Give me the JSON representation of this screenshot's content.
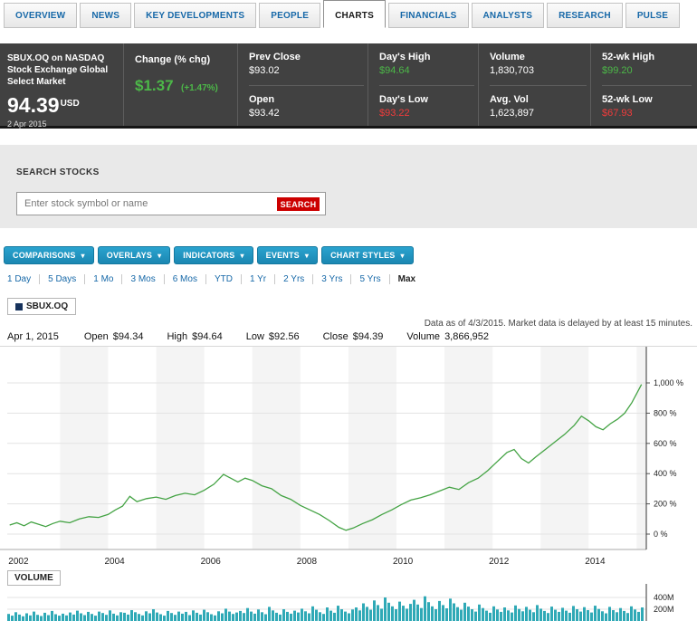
{
  "tabs": [
    "OVERVIEW",
    "NEWS",
    "KEY DEVELOPMENTS",
    "PEOPLE",
    "CHARTS",
    "FINANCIALS",
    "ANALYSTS",
    "RESEARCH",
    "PULSE"
  ],
  "active_tab": "CHARTS",
  "ui": {
    "caret": "▾"
  },
  "quote": {
    "name": "SBUX.OQ on NASDAQ Stock Exchange Global Select Market",
    "price": "94.39",
    "currency": "USD",
    "date": "2 Apr 2015",
    "change": {
      "label": "Change (% chg)",
      "value": "$1.37",
      "pct": "(+1.47%)"
    },
    "stats": [
      {
        "label": "Prev Close",
        "value": "$93.02"
      },
      {
        "label": "Open",
        "value": "$93.42"
      },
      {
        "label": "Day's High",
        "value": "$94.64"
      },
      {
        "label": "Day's Low",
        "value": "$93.22"
      },
      {
        "label": "Volume",
        "value": "1,830,703"
      },
      {
        "label": "Avg. Vol",
        "value": "1,623,897"
      },
      {
        "label": "52-wk High",
        "value": "$99.20"
      },
      {
        "label": "52-wk Low",
        "value": "$67.93"
      }
    ]
  },
  "search": {
    "title": "SEARCH STOCKS",
    "placeholder": "Enter stock symbol or name",
    "button": "SEARCH"
  },
  "toolbar": {
    "buttons": [
      "COMPARISONS",
      "OVERLAYS",
      "INDICATORS",
      "EVENTS",
      "CHART STYLES"
    ]
  },
  "ranges": [
    "1 Day",
    "5 Days",
    "1 Mo",
    "3 Mos",
    "6 Mos",
    "YTD",
    "1 Yr",
    "2 Yrs",
    "3 Yrs",
    "5 Yrs",
    "Max"
  ],
  "legend": {
    "symbol": "SBUX.OQ"
  },
  "note": "Data as of 4/3/2015. Market data is delayed by at least 15 minutes.",
  "ohlc": {
    "date": "Apr 1, 2015",
    "items": [
      {
        "label": "Open",
        "value": "$94.34"
      },
      {
        "label": "High",
        "value": "$94.64"
      },
      {
        "label": "Low",
        "value": "$92.56"
      },
      {
        "label": "Close",
        "value": "$94.39"
      },
      {
        "label": "Volume",
        "value": "3,866,952"
      }
    ]
  },
  "volume_label": "VOLUME",
  "chart_data": {
    "type": "line",
    "title": "SBUX.OQ cumulative % change, 2002–2015 (Max range)",
    "x_axis": {
      "ticks": [
        2002,
        2004,
        2006,
        2008,
        2010,
        2012,
        2014
      ],
      "range": [
        2001.9,
        2015.2
      ]
    },
    "y_axis": {
      "unit": "%",
      "ticks": [
        0,
        200,
        400,
        600,
        800,
        1000
      ],
      "labels": [
        "0 %",
        "200 %",
        "400 %",
        "600 %",
        "800 %",
        "1,000 %"
      ],
      "range": [
        0,
        1100
      ]
    },
    "series": [
      {
        "name": "SBUX.OQ",
        "color": "#44a344",
        "points": [
          [
            2001.95,
            60
          ],
          [
            2002.1,
            75
          ],
          [
            2002.25,
            55
          ],
          [
            2002.4,
            80
          ],
          [
            2002.55,
            65
          ],
          [
            2002.7,
            50
          ],
          [
            2002.85,
            70
          ],
          [
            2003.0,
            85
          ],
          [
            2003.2,
            75
          ],
          [
            2003.4,
            100
          ],
          [
            2003.6,
            115
          ],
          [
            2003.8,
            110
          ],
          [
            2004.0,
            130
          ],
          [
            2004.15,
            160
          ],
          [
            2004.3,
            185
          ],
          [
            2004.45,
            250
          ],
          [
            2004.6,
            215
          ],
          [
            2004.8,
            235
          ],
          [
            2005.0,
            245
          ],
          [
            2005.2,
            230
          ],
          [
            2005.4,
            255
          ],
          [
            2005.6,
            270
          ],
          [
            2005.8,
            260
          ],
          [
            2006.0,
            290
          ],
          [
            2006.2,
            330
          ],
          [
            2006.4,
            395
          ],
          [
            2006.55,
            370
          ],
          [
            2006.7,
            345
          ],
          [
            2006.85,
            370
          ],
          [
            2007.0,
            355
          ],
          [
            2007.2,
            320
          ],
          [
            2007.4,
            300
          ],
          [
            2007.6,
            255
          ],
          [
            2007.8,
            230
          ],
          [
            2008.0,
            190
          ],
          [
            2008.2,
            160
          ],
          [
            2008.4,
            130
          ],
          [
            2008.6,
            90
          ],
          [
            2008.8,
            45
          ],
          [
            2008.95,
            25
          ],
          [
            2009.1,
            40
          ],
          [
            2009.3,
            70
          ],
          [
            2009.5,
            95
          ],
          [
            2009.7,
            130
          ],
          [
            2009.9,
            160
          ],
          [
            2010.1,
            195
          ],
          [
            2010.3,
            225
          ],
          [
            2010.5,
            240
          ],
          [
            2010.7,
            260
          ],
          [
            2010.9,
            285
          ],
          [
            2011.1,
            310
          ],
          [
            2011.3,
            295
          ],
          [
            2011.5,
            340
          ],
          [
            2011.7,
            370
          ],
          [
            2011.9,
            420
          ],
          [
            2012.1,
            480
          ],
          [
            2012.3,
            540
          ],
          [
            2012.45,
            560
          ],
          [
            2012.6,
            500
          ],
          [
            2012.75,
            470
          ],
          [
            2012.9,
            510
          ],
          [
            2013.1,
            560
          ],
          [
            2013.3,
            610
          ],
          [
            2013.5,
            660
          ],
          [
            2013.7,
            720
          ],
          [
            2013.85,
            780
          ],
          [
            2014.0,
            750
          ],
          [
            2014.15,
            710
          ],
          [
            2014.3,
            690
          ],
          [
            2014.45,
            730
          ],
          [
            2014.6,
            760
          ],
          [
            2014.75,
            800
          ],
          [
            2014.9,
            870
          ],
          [
            2015.0,
            930
          ],
          [
            2015.1,
            990
          ]
        ]
      }
    ],
    "volume": {
      "unit": "M",
      "y_ticks": [
        400,
        200
      ],
      "labels": [
        "400M",
        "200M"
      ],
      "color": "#2fa9b6",
      "values": [
        120,
        90,
        150,
        110,
        80,
        130,
        95,
        160,
        105,
        85,
        140,
        100,
        170,
        115,
        90,
        125,
        95,
        145,
        110,
        175,
        130,
        100,
        155,
        120,
        90,
        160,
        135,
        105,
        180,
        125,
        95,
        150,
        140,
        110,
        185,
        150,
        120,
        95,
        165,
        130,
        200,
        145,
        115,
        90,
        170,
        135,
        105,
        160,
        125,
        155,
        100,
        180,
        140,
        110,
        190,
        150,
        115,
        95,
        165,
        130,
        210,
        160,
        120,
        145,
        170,
        135,
        220,
        160,
        125,
        195,
        150,
        115,
        240,
        180,
        140,
        110,
        200,
        155,
        125,
        175,
        145,
        210,
        165,
        130,
        250,
        190,
        150,
        120,
        230,
        175,
        140,
        260,
        200,
        160,
        130,
        195,
        230,
        180,
        300,
        240,
        190,
        350,
        270,
        210,
        400,
        310,
        250,
        200,
        330,
        260,
        210,
        290,
        360,
        280,
        220,
        420,
        320,
        250,
        200,
        340,
        270,
        215,
        380,
        300,
        235,
        190,
        310,
        245,
        200,
        160,
        280,
        220,
        175,
        140,
        250,
        195,
        155,
        230,
        180,
        145,
        265,
        205,
        165,
        240,
        190,
        150,
        270,
        210,
        170,
        135,
        245,
        190,
        155,
        225,
        175,
        140,
        255,
        200,
        160,
        235,
        185,
        145,
        260,
        205,
        165,
        130,
        240,
        185,
        150,
        220,
        170,
        135,
        250,
        195,
        155,
        230
      ]
    }
  }
}
